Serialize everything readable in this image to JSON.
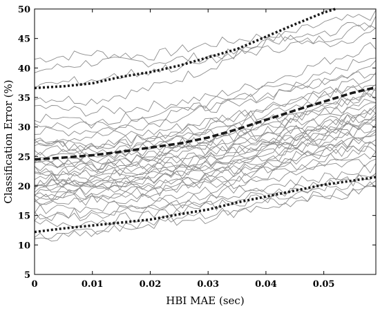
{
  "chart_data": {
    "type": "line",
    "title": "",
    "xlabel": "HBI MAE (sec)",
    "ylabel": "Classification Error (%)",
    "xlim": [
      0,
      0.059
    ],
    "ylim": [
      5,
      50
    ],
    "xticks": [
      0,
      0.01,
      0.02,
      0.03,
      0.04,
      0.05
    ],
    "xtick_labels": [
      "0",
      "0.01",
      "0.02",
      "0.03",
      "0.04",
      "0.05"
    ],
    "yticks": [
      5,
      10,
      15,
      20,
      25,
      30,
      35,
      40,
      45,
      50
    ],
    "ytick_labels": [
      "5",
      "10",
      "15",
      "20",
      "25",
      "30",
      "35",
      "40",
      "45",
      "50"
    ],
    "grid": false,
    "legend": "none",
    "colors": {
      "runs": "#8c8c8c",
      "summary": "#1a1a1a"
    },
    "summary_series": [
      {
        "style": "dashed",
        "x": [
          0,
          0.005,
          0.01,
          0.015,
          0.02,
          0.025,
          0.03,
          0.035,
          0.04,
          0.045,
          0.05,
          0.055,
          0.059
        ],
        "values": [
          24.5,
          24.8,
          25.2,
          25.8,
          26.5,
          27.2,
          28.2,
          29.6,
          31.2,
          32.8,
          34.3,
          35.8,
          36.7
        ]
      },
      {
        "style": "dotted",
        "x": [
          0,
          0.005,
          0.01,
          0.015,
          0.02,
          0.025,
          0.03,
          0.035,
          0.04,
          0.045,
          0.05,
          0.055,
          0.059
        ],
        "values": [
          12.2,
          12.8,
          13.3,
          13.8,
          14.3,
          15.2,
          16.0,
          17.2,
          18.2,
          19.2,
          20.2,
          20.9,
          21.5
        ]
      },
      {
        "style": "dotted",
        "x": [
          0,
          0.005,
          0.01,
          0.015,
          0.02,
          0.025,
          0.03,
          0.035,
          0.04,
          0.045,
          0.05,
          0.052
        ],
        "values": [
          36.6,
          36.9,
          37.4,
          38.5,
          39.3,
          40.4,
          41.8,
          43.2,
          45.3,
          47.4,
          49.4,
          50.0
        ]
      }
    ],
    "run_series": {
      "x": [
        0,
        0.01,
        0.02,
        0.03,
        0.04,
        0.05,
        0.059
      ],
      "curves": [
        [
          41.5,
          42.5,
          42.0,
          44.0,
          45.5,
          44.0,
          46.0
        ],
        [
          39.5,
          41.0,
          41.0,
          42.0,
          43.0,
          45.0,
          47.5
        ],
        [
          35.0,
          34.5,
          36.5,
          40.0,
          44.5,
          47.5,
          49.0
        ],
        [
          33.5,
          32.5,
          33.5,
          35.0,
          37.5,
          41.0,
          44.0
        ],
        [
          30.5,
          30.0,
          31.0,
          34.0,
          36.5,
          38.5,
          42.5
        ],
        [
          29.0,
          29.5,
          30.5,
          33.0,
          35.5,
          38.0,
          40.5
        ],
        [
          28.0,
          28.5,
          29.0,
          31.0,
          33.5,
          36.0,
          38.5
        ],
        [
          27.5,
          27.0,
          28.0,
          30.0,
          32.5,
          35.0,
          37.5
        ],
        [
          26.8,
          26.5,
          27.5,
          29.0,
          31.5,
          34.0,
          36.5
        ],
        [
          26.0,
          26.0,
          27.0,
          28.5,
          31.0,
          33.5,
          35.5
        ],
        [
          25.5,
          25.5,
          26.5,
          28.0,
          30.0,
          32.5,
          34.5
        ],
        [
          25.0,
          25.0,
          26.0,
          27.5,
          29.5,
          32.0,
          34.0
        ],
        [
          24.5,
          24.5,
          25.5,
          27.0,
          29.0,
          31.0,
          33.0
        ],
        [
          24.0,
          24.0,
          25.0,
          26.5,
          28.5,
          30.5,
          32.5
        ],
        [
          23.5,
          23.5,
          24.5,
          26.0,
          28.0,
          30.0,
          32.0
        ],
        [
          23.0,
          23.0,
          24.0,
          25.5,
          27.5,
          29.5,
          31.5
        ],
        [
          22.5,
          22.5,
          23.5,
          25.0,
          27.0,
          29.0,
          31.0
        ],
        [
          22.0,
          22.0,
          23.0,
          24.5,
          26.5,
          28.5,
          30.5
        ],
        [
          21.5,
          21.5,
          22.5,
          24.0,
          26.0,
          28.0,
          30.0
        ],
        [
          21.0,
          21.0,
          22.0,
          23.5,
          25.5,
          27.5,
          29.5
        ],
        [
          20.5,
          20.5,
          21.5,
          23.0,
          25.0,
          27.0,
          29.0
        ],
        [
          20.0,
          20.5,
          21.0,
          22.5,
          24.5,
          26.5,
          28.5
        ],
        [
          19.5,
          20.0,
          20.5,
          22.0,
          24.0,
          26.0,
          28.0
        ],
        [
          19.0,
          19.5,
          20.0,
          21.5,
          23.5,
          25.5,
          27.5
        ],
        [
          18.5,
          19.0,
          19.5,
          21.0,
          23.0,
          25.0,
          27.0
        ],
        [
          18.0,
          18.5,
          19.0,
          20.5,
          22.5,
          24.5,
          26.5
        ],
        [
          17.5,
          18.0,
          18.5,
          20.0,
          22.0,
          24.0,
          25.5
        ],
        [
          17.0,
          17.5,
          18.0,
          19.5,
          21.0,
          23.0,
          24.5
        ],
        [
          16.0,
          16.5,
          17.0,
          18.5,
          20.0,
          21.5,
          23.0
        ],
        [
          15.0,
          15.5,
          16.5,
          17.5,
          19.0,
          20.5,
          22.0
        ],
        [
          14.5,
          15.0,
          16.0,
          17.0,
          18.5,
          20.0,
          21.5
        ],
        [
          13.5,
          14.0,
          15.0,
          16.5,
          18.0,
          19.5,
          21.0
        ],
        [
          11.0,
          12.5,
          14.0,
          15.0,
          17.0,
          18.5,
          20.0
        ],
        [
          10.5,
          12.0,
          13.5,
          14.5,
          16.5,
          18.0,
          19.5
        ],
        [
          37.0,
          38.0,
          39.5,
          41.0,
          44.0,
          46.0,
          48.0
        ],
        [
          31.5,
          31.0,
          32.0,
          33.5,
          35.0,
          37.5,
          39.5
        ],
        [
          27.0,
          26.5,
          28.5,
          30.5,
          33.0,
          35.5,
          37.0
        ],
        [
          22.0,
          23.5,
          25.0,
          27.5,
          30.0,
          33.0,
          36.0
        ],
        [
          20.0,
          21.0,
          23.0,
          25.0,
          27.0,
          30.0,
          33.5
        ],
        [
          18.0,
          19.5,
          21.0,
          23.5,
          26.0,
          29.0,
          32.0
        ]
      ]
    }
  }
}
